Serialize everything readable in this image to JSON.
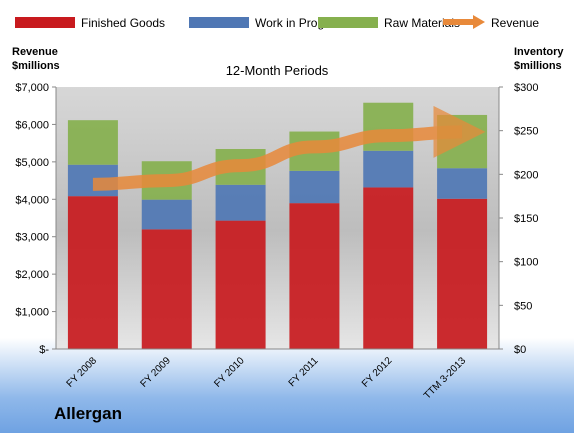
{
  "company": "Allergan",
  "chart_data": {
    "type": "bar",
    "stacked": true,
    "title": "12-Month Periods",
    "ylabel_left": [
      "Revenue",
      "$millions"
    ],
    "ylabel_right": [
      "Inventory",
      "$millions"
    ],
    "categories": [
      "FY 2008",
      "FY 2009",
      "FY 2010",
      "FY 2011",
      "FY 2012",
      "TTM 3-2013"
    ],
    "yaxis_left": {
      "min": 0,
      "max": 7000,
      "ticks": [
        "$-",
        "$1,000",
        "$2,000",
        "$3,000",
        "$4,000",
        "$5,000",
        "$6,000",
        "$7,000"
      ]
    },
    "yaxis_right": {
      "min": 0,
      "max": 300,
      "ticks": [
        "$0",
        "$50",
        "$100",
        "$150",
        "$200",
        "$250",
        "$300"
      ]
    },
    "series": [
      {
        "name": "Finished Goods",
        "axis": "right",
        "color": "#c81a1e",
        "values": [
          175,
          137,
          147,
          167,
          185,
          172
        ]
      },
      {
        "name": "Work in Progress",
        "axis": "right",
        "color": "#4f77b4",
        "values": [
          36,
          34,
          41,
          37,
          42,
          35
        ]
      },
      {
        "name": "Raw Materials",
        "axis": "right",
        "color": "#86b04e",
        "values": [
          51,
          44,
          41,
          45,
          55,
          61
        ]
      }
    ],
    "line_series": {
      "name": "Revenue",
      "axis": "left",
      "color": "#e8893a",
      "values": [
        4400,
        4500,
        4900,
        5400,
        5700,
        5800
      ]
    },
    "legend_position": "top",
    "grid": false
  }
}
